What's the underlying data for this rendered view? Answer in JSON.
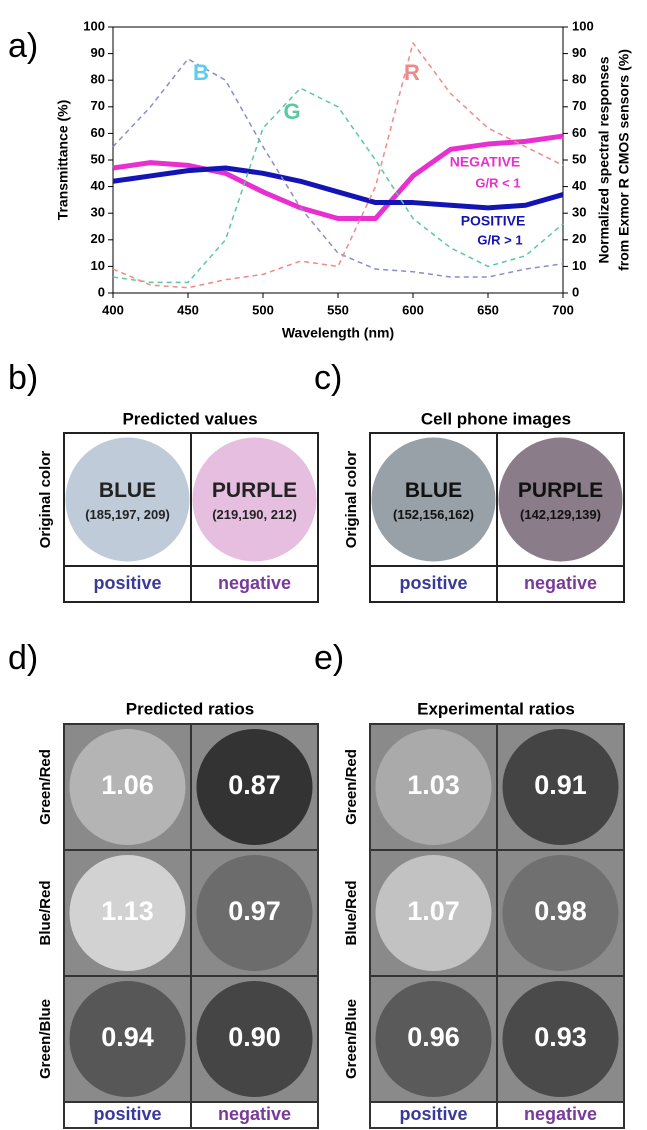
{
  "chart_data": {
    "type": "line",
    "panel_label": "a)",
    "x_label": "Wavelength (nm)",
    "y_label": "Transmittance (%)",
    "y2_label": [
      "Normalized spectral responses",
      "from Exmor R CMOS sensors (%)"
    ],
    "x": [
      400,
      425,
      450,
      475,
      500,
      525,
      550,
      575,
      600,
      625,
      650,
      675,
      700
    ],
    "xlim": [
      400,
      700
    ],
    "xticks": [
      400,
      450,
      500,
      550,
      600,
      650,
      700
    ],
    "ylim": [
      0,
      100
    ],
    "yticks": [
      0,
      10,
      20,
      30,
      40,
      50,
      60,
      70,
      80,
      90,
      100
    ],
    "y2lim": [
      0,
      100
    ],
    "y2ticks": [
      0,
      10,
      20,
      30,
      40,
      50,
      60,
      70,
      80,
      90,
      100
    ],
    "series": [
      {
        "name": "NEGATIVE",
        "color": "#e830d0",
        "linestyle": "solid",
        "values": [
          47,
          49,
          48,
          45,
          38,
          32,
          28,
          28,
          44,
          54,
          56,
          57,
          59
        ]
      },
      {
        "name": "POSITIVE",
        "color": "#1414b4",
        "linestyle": "solid",
        "values": [
          42,
          44,
          46,
          47,
          45,
          42,
          38,
          34,
          34,
          33,
          32,
          33,
          37
        ]
      },
      {
        "name": "B",
        "color": "#8b8bd0",
        "linestyle": "dashed",
        "axis": "y2",
        "values": [
          55,
          70,
          88,
          80,
          55,
          32,
          15,
          9,
          8,
          6,
          6,
          9,
          11
        ]
      },
      {
        "name": "G",
        "color": "#5cc8a0",
        "linestyle": "dashed",
        "axis": "y2",
        "values": [
          6,
          4,
          4,
          20,
          62,
          77,
          70,
          50,
          28,
          17,
          10,
          14,
          26
        ]
      },
      {
        "name": "R",
        "color": "#ef8a8a",
        "linestyle": "dashed",
        "axis": "y2",
        "values": [
          9,
          3,
          2,
          5,
          7,
          12,
          10,
          40,
          94,
          75,
          62,
          55,
          48
        ]
      }
    ],
    "annotations": [
      "G/R < 1",
      "G/R > 1"
    ]
  },
  "panels": [
    {
      "label": "b)",
      "title": "Predicted values",
      "side_label": "Original color",
      "cells": [
        {
          "name": "BLUE",
          "code": "(185,197, 209)"
        },
        {
          "name": "PURPLE",
          "code": "(219,190, 212)"
        }
      ],
      "footer": [
        "positive",
        "negative"
      ]
    },
    {
      "label": "c)",
      "title": "Cell phone images",
      "side_label": "Original color",
      "cells": [
        {
          "name": "BLUE",
          "code": "(152,156,162)"
        },
        {
          "name": "PURPLE",
          "code": "(142,129,139)"
        }
      ],
      "footer": [
        "positive",
        "negative"
      ]
    },
    {
      "label": "d)",
      "title": "Predicted ratios",
      "rows": [
        {
          "label": "Green/Red",
          "values": [
            "1.06",
            "0.87"
          ]
        },
        {
          "label": "Blue/Red",
          "values": [
            "1.13",
            "0.97"
          ]
        },
        {
          "label": "Green/Blue",
          "values": [
            "0.94",
            "0.90"
          ]
        }
      ],
      "footer": [
        "positive",
        "negative"
      ]
    },
    {
      "label": "e)",
      "title": "Experimental ratios",
      "rows": [
        {
          "label": "Green/Red",
          "values": [
            "1.03",
            "0.91"
          ]
        },
        {
          "label": "Blue/Red",
          "values": [
            "1.07",
            "0.98"
          ]
        },
        {
          "label": "Green/Blue",
          "values": [
            "0.96",
            "0.93"
          ]
        }
      ],
      "footer": [
        "positive",
        "negative"
      ]
    }
  ]
}
